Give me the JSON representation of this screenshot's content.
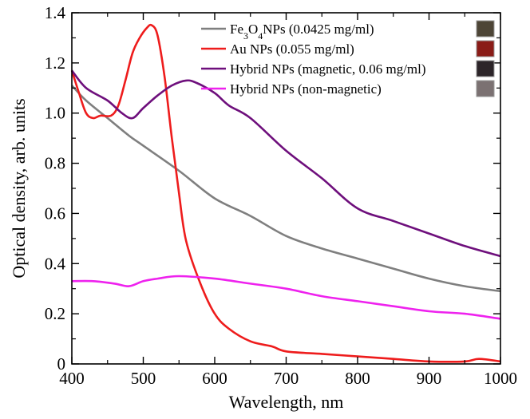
{
  "chart_data": {
    "type": "line",
    "title": "",
    "xlabel": "Wavelength, nm",
    "ylabel": "Optical density, arb. units",
    "xlim": [
      400,
      1000
    ],
    "ylim": [
      0,
      1.4
    ],
    "x_ticks": [
      "400",
      "500",
      "600",
      "700",
      "800",
      "900",
      "1000"
    ],
    "y_ticks": [
      "0",
      "0.2",
      "0.4",
      "0.6",
      "0.8",
      "1.0",
      "1.2",
      "1.4"
    ],
    "grid": false,
    "legend_position": "top-right",
    "series": [
      {
        "name": "Fe3O4NPs (0.0425 mg/ml)",
        "legend_parts": [
          {
            "text": "Fe",
            "shift": ""
          },
          {
            "text": "3",
            "shift": "sub"
          },
          {
            "text": "O",
            "shift": ""
          },
          {
            "text": "4",
            "shift": "sub"
          },
          {
            "text": "NPs (0.0425 mg/ml)",
            "shift": ""
          }
        ],
        "color": "#7f7f7f",
        "swatch_color": "#4d4536",
        "x": [
          400,
          420,
          450,
          480,
          500,
          550,
          600,
          650,
          700,
          750,
          800,
          850,
          900,
          950,
          1000
        ],
        "y": [
          1.11,
          1.05,
          0.98,
          0.91,
          0.87,
          0.77,
          0.66,
          0.59,
          0.51,
          0.46,
          0.42,
          0.38,
          0.34,
          0.31,
          0.29
        ]
      },
      {
        "name": "Au NPs (0.055 mg/ml)",
        "legend_parts": [
          {
            "text": "Au NPs (0.055 mg/ml)",
            "shift": ""
          }
        ],
        "color": "#ee1c1c",
        "swatch_color": "#8a1c17",
        "x": [
          400,
          410,
          420,
          430,
          440,
          455,
          465,
          475,
          485,
          495,
          505,
          512,
          520,
          530,
          540,
          550,
          560,
          580,
          600,
          620,
          650,
          680,
          700,
          750,
          800,
          850,
          900,
          950,
          970,
          1000
        ],
        "y": [
          1.17,
          1.08,
          1.0,
          0.98,
          0.99,
          0.99,
          1.03,
          1.13,
          1.24,
          1.3,
          1.34,
          1.35,
          1.31,
          1.14,
          0.9,
          0.68,
          0.49,
          0.32,
          0.2,
          0.14,
          0.09,
          0.07,
          0.05,
          0.04,
          0.03,
          0.02,
          0.01,
          0.01,
          0.02,
          0.01
        ]
      },
      {
        "name": "Hybrid NPs (magnetic, 0.06 mg/ml)",
        "legend_parts": [
          {
            "text": "Hybrid NPs (magnetic, 0.06 mg/ml)",
            "shift": ""
          }
        ],
        "color": "#6e0f7c",
        "swatch_color": "#2c2529",
        "x": [
          400,
          420,
          450,
          470,
          485,
          500,
          520,
          540,
          560,
          575,
          600,
          620,
          650,
          700,
          750,
          800,
          850,
          900,
          950,
          1000
        ],
        "y": [
          1.17,
          1.1,
          1.05,
          1.0,
          0.98,
          1.02,
          1.07,
          1.11,
          1.13,
          1.12,
          1.08,
          1.03,
          0.98,
          0.85,
          0.74,
          0.62,
          0.57,
          0.52,
          0.47,
          0.43
        ]
      },
      {
        "name": "Hybrid NPs (non-magnetic)",
        "legend_parts": [
          {
            "text": "Hybrid NPs (non-magnetic)",
            "shift": ""
          }
        ],
        "color": "#ee22ee",
        "swatch_color": "#7b7172",
        "x": [
          400,
          430,
          460,
          480,
          500,
          520,
          550,
          600,
          650,
          700,
          750,
          800,
          850,
          900,
          950,
          1000
        ],
        "y": [
          0.33,
          0.33,
          0.32,
          0.31,
          0.33,
          0.34,
          0.35,
          0.34,
          0.32,
          0.3,
          0.27,
          0.25,
          0.23,
          0.21,
          0.2,
          0.18
        ]
      }
    ]
  }
}
